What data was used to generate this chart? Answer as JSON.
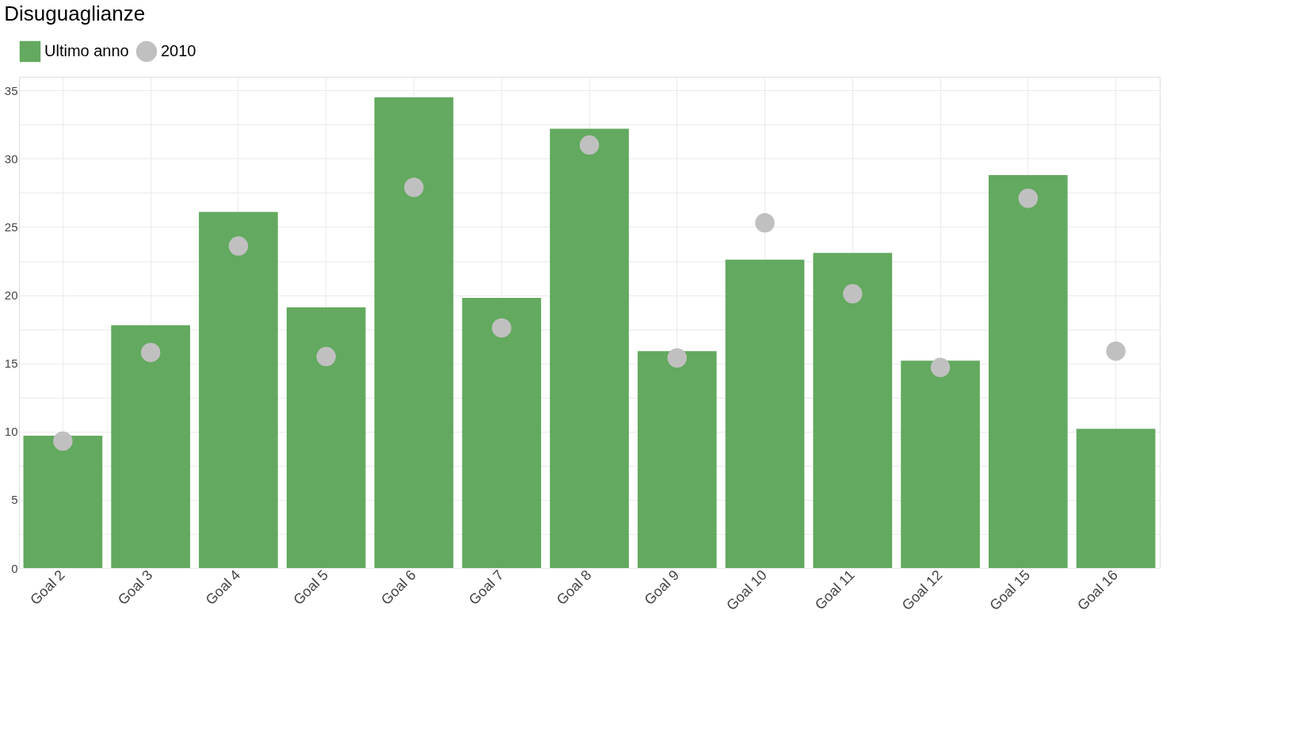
{
  "chart_data": {
    "type": "bar",
    "title": "Disuguaglianze",
    "categories": [
      "Goal 2",
      "Goal 3",
      "Goal 4",
      "Goal 5",
      "Goal 6",
      "Goal 7",
      "Goal 8",
      "Goal 9",
      "Goal 10",
      "Goal 11",
      "Goal 12",
      "Goal 15",
      "Goal 16"
    ],
    "series": [
      {
        "name": "Ultimo anno",
        "color": "#63a95f",
        "values": [
          9.7,
          17.8,
          26.1,
          19.1,
          34.5,
          19.8,
          32.2,
          15.9,
          22.6,
          23.1,
          15.2,
          28.8,
          10.2
        ]
      },
      {
        "name": "2010",
        "type": "scatter",
        "color": "#c0c0c0",
        "values": [
          9.3,
          15.8,
          23.6,
          15.5,
          27.9,
          17.6,
          31.0,
          15.4,
          25.3,
          20.1,
          14.7,
          27.1,
          15.9
        ]
      }
    ],
    "ylim": [
      0,
      36
    ],
    "yticks": [
      0,
      {
        "value": 2.5,
        "label": null
      },
      5,
      {
        "value": 7.5,
        "label": null
      },
      10,
      {
        "value": 12.5,
        "label": null
      },
      15,
      {
        "value": 17.5,
        "label": null
      },
      20,
      {
        "value": 22.5,
        "label": null
      },
      25,
      {
        "value": 27.5,
        "label": null
      },
      30,
      {
        "value": 32.5,
        "label": null
      },
      35
    ],
    "grid": true,
    "legend": "top",
    "marker": "circle"
  }
}
